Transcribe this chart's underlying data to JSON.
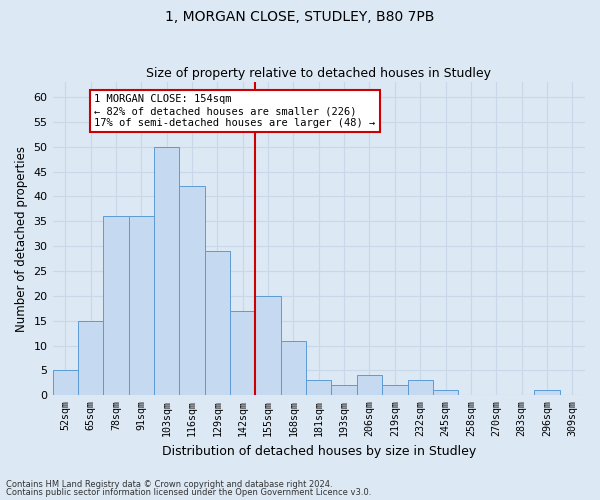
{
  "title1": "1, MORGAN CLOSE, STUDLEY, B80 7PB",
  "title2": "Size of property relative to detached houses in Studley",
  "xlabel": "Distribution of detached houses by size in Studley",
  "ylabel": "Number of detached properties",
  "bar_labels": [
    "52sqm",
    "65sqm",
    "78sqm",
    "91sqm",
    "103sqm",
    "116sqm",
    "129sqm",
    "142sqm",
    "155sqm",
    "168sqm",
    "181sqm",
    "193sqm",
    "206sqm",
    "219sqm",
    "232sqm",
    "245sqm",
    "258sqm",
    "270sqm",
    "283sqm",
    "296sqm",
    "309sqm"
  ],
  "bar_values": [
    5,
    15,
    36,
    36,
    50,
    42,
    29,
    17,
    20,
    11,
    3,
    2,
    4,
    2,
    3,
    1,
    0,
    0,
    0,
    1,
    0
  ],
  "bar_color": "#c5d9f1",
  "bar_edgecolor": "#5b9bd5",
  "vline_x_index": 8,
  "vline_color": "#cc0000",
  "annotation_text": "1 MORGAN CLOSE: 154sqm\n← 82% of detached houses are smaller (226)\n17% of semi-detached houses are larger (48) →",
  "annotation_box_facecolor": "#ffffff",
  "annotation_box_edgecolor": "#cc0000",
  "ylim": [
    0,
    63
  ],
  "yticks": [
    0,
    5,
    10,
    15,
    20,
    25,
    30,
    35,
    40,
    45,
    50,
    55,
    60
  ],
  "grid_color": "#c8d8e8",
  "background_color": "#dce8f4",
  "footer1": "Contains HM Land Registry data © Crown copyright and database right 2024.",
  "footer2": "Contains public sector information licensed under the Open Government Licence v3.0."
}
